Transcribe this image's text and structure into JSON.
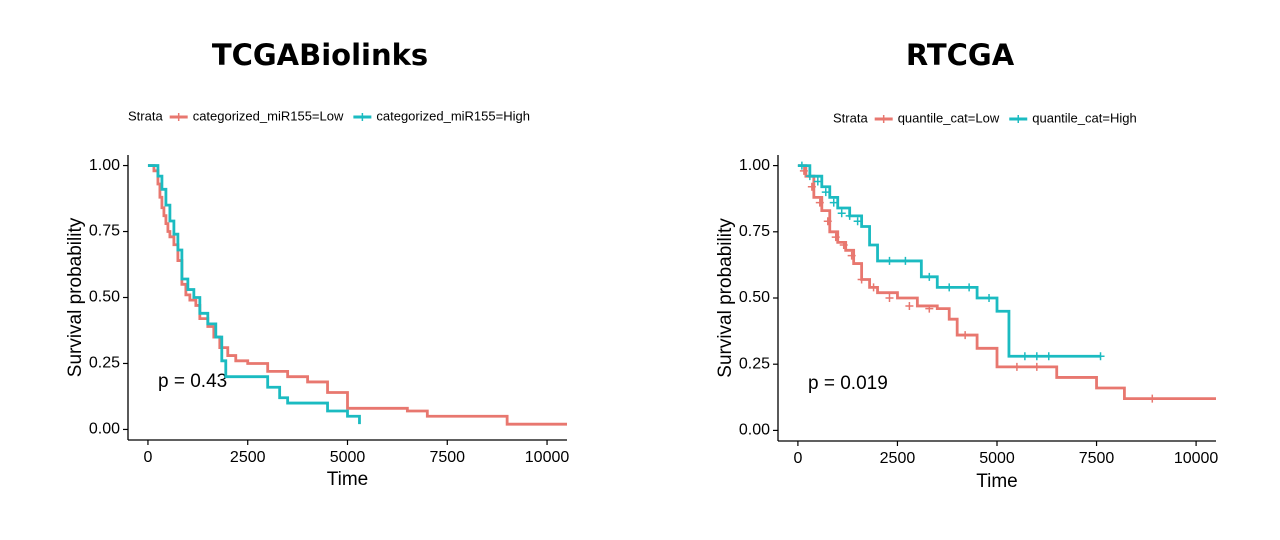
{
  "chart_data": [
    {
      "type": "line",
      "title": "TCGABiolinks",
      "xlabel": "Time",
      "ylabel": "Survival probability",
      "xlim": [
        -500,
        10500
      ],
      "ylim": [
        -0.04,
        1.04
      ],
      "xticks": [
        0,
        2500,
        5000,
        7500,
        10000
      ],
      "xtick_labels": [
        "0",
        "2500",
        "5000",
        "7500",
        "10000"
      ],
      "yticks": [
        0,
        0.25,
        0.5,
        0.75,
        1.0
      ],
      "ytick_labels": [
        "0.00",
        "0.25",
        "0.50",
        "0.75",
        "1.00"
      ],
      "annotation": "p = 0.43",
      "legend": {
        "title": "Strata",
        "position": "top"
      },
      "colors": {
        "low": "#E8776F",
        "high": "#1BBBC1"
      },
      "series": [
        {
          "name": "categorized_miR155=Low",
          "x": [
            0,
            150,
            250,
            300,
            350,
            400,
            450,
            500,
            550,
            650,
            750,
            850,
            950,
            1050,
            1200,
            1300,
            1500,
            1650,
            1800,
            2000,
            2200,
            2500,
            3000,
            3500,
            4000,
            4500,
            5000,
            6500,
            7000,
            9000,
            10500
          ],
          "y": [
            1.0,
            0.98,
            0.93,
            0.88,
            0.84,
            0.81,
            0.78,
            0.75,
            0.73,
            0.7,
            0.64,
            0.55,
            0.51,
            0.49,
            0.47,
            0.42,
            0.39,
            0.35,
            0.31,
            0.28,
            0.26,
            0.25,
            0.22,
            0.2,
            0.18,
            0.14,
            0.08,
            0.07,
            0.05,
            0.02,
            0.02
          ]
        },
        {
          "name": "categorized_miR155=High",
          "x": [
            0,
            250,
            350,
            450,
            550,
            650,
            750,
            850,
            1000,
            1150,
            1300,
            1500,
            1700,
            1850,
            1950,
            2000,
            3000,
            3300,
            3500,
            4500,
            5000,
            5300
          ],
          "y": [
            1.0,
            0.96,
            0.91,
            0.85,
            0.79,
            0.74,
            0.68,
            0.57,
            0.53,
            0.5,
            0.44,
            0.4,
            0.35,
            0.26,
            0.2,
            0.2,
            0.16,
            0.12,
            0.1,
            0.07,
            0.05,
            0.02
          ]
        }
      ]
    },
    {
      "type": "line",
      "title": "RTCGA",
      "xlabel": "Time",
      "ylabel": "Survival probability",
      "xlim": [
        -500,
        10500
      ],
      "ylim": [
        -0.04,
        1.04
      ],
      "xticks": [
        0,
        2500,
        5000,
        7500,
        10000
      ],
      "xtick_labels": [
        "0",
        "2500",
        "5000",
        "7500",
        "10000"
      ],
      "yticks": [
        0,
        0.25,
        0.5,
        0.75,
        1.0
      ],
      "ytick_labels": [
        "0.00",
        "0.25",
        "0.50",
        "0.75",
        "1.00"
      ],
      "annotation": "p = 0.019",
      "legend": {
        "title": "Strata",
        "position": "top"
      },
      "colors": {
        "low": "#E8776F",
        "high": "#1BBBC1"
      },
      "series": [
        {
          "name": "quantile_cat=Low",
          "x": [
            0,
            200,
            400,
            600,
            800,
            1000,
            1200,
            1400,
            1600,
            1800,
            2000,
            2500,
            3000,
            3500,
            3800,
            4000,
            4500,
            5000,
            6500,
            7500,
            8200,
            10500
          ],
          "y": [
            1.0,
            0.96,
            0.88,
            0.83,
            0.75,
            0.71,
            0.68,
            0.63,
            0.57,
            0.54,
            0.52,
            0.5,
            0.47,
            0.46,
            0.42,
            0.36,
            0.31,
            0.24,
            0.2,
            0.16,
            0.12,
            0.12
          ],
          "censor_x": [
            150,
            350,
            550,
            750,
            950,
            1150,
            1350,
            1600,
            1900,
            2300,
            2800,
            3300,
            4200,
            5500,
            6000,
            8900
          ],
          "censor_y": [
            0.98,
            0.92,
            0.86,
            0.79,
            0.73,
            0.7,
            0.66,
            0.57,
            0.54,
            0.5,
            0.47,
            0.46,
            0.36,
            0.24,
            0.24,
            0.12
          ]
        },
        {
          "name": "quantile_cat=High",
          "x": [
            0,
            300,
            600,
            800,
            1000,
            1300,
            1600,
            1800,
            2000,
            3100,
            3500,
            4500,
            5000,
            5300,
            7600
          ],
          "y": [
            1.0,
            0.96,
            0.92,
            0.88,
            0.84,
            0.81,
            0.77,
            0.7,
            0.64,
            0.58,
            0.54,
            0.5,
            0.45,
            0.28,
            0.28
          ],
          "censor_x": [
            100,
            300,
            500,
            700,
            900,
            1100,
            1300,
            1500,
            2300,
            2700,
            3300,
            3800,
            4300,
            4800,
            5700,
            6000,
            6300,
            7600
          ],
          "censor_y": [
            1.0,
            0.96,
            0.94,
            0.9,
            0.86,
            0.82,
            0.81,
            0.79,
            0.64,
            0.64,
            0.58,
            0.54,
            0.54,
            0.5,
            0.28,
            0.28,
            0.28,
            0.28
          ]
        }
      ]
    }
  ]
}
